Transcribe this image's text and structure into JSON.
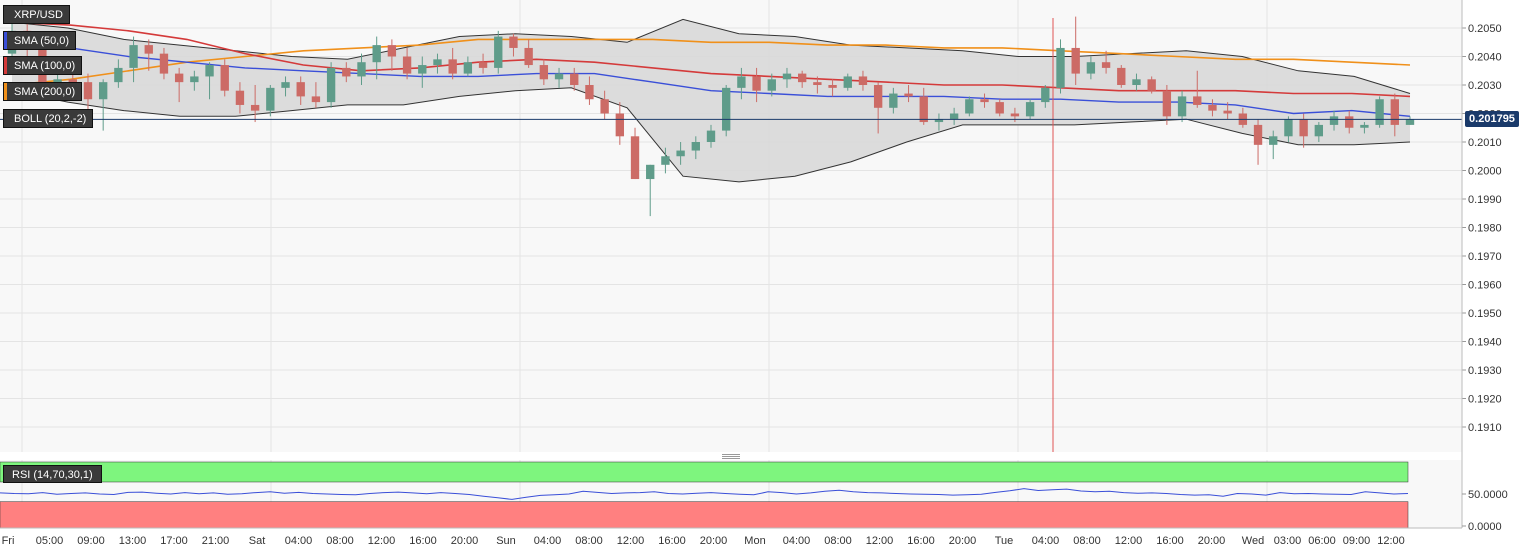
{
  "chart_data": [
    {
      "type": "candlestick",
      "symbol": "XRP/USD",
      "indicators": [
        "SMA (50,0)",
        "SMA (100,0)",
        "SMA (200,0)",
        "BOLL (20,2,-2)"
      ],
      "indicator_colors": {
        "sma50": "#3a4fd8",
        "sma100": "#d43a3a",
        "sma200": "#f0901a",
        "boll": "#3a3a3a"
      },
      "ylim": [
        0.19,
        0.206
      ],
      "yticks": [
        "0.2050",
        "0.2040",
        "0.2030",
        "0.2020",
        "0.2010",
        "0.2000",
        "0.1990",
        "0.1980",
        "0.1970",
        "0.1960",
        "0.1950",
        "0.1940",
        "0.1930",
        "0.1920",
        "0.1910"
      ],
      "current_price": "0.201795",
      "current_price_value": 0.201795,
      "up_color": "#5f9c8a",
      "down_color": "#cc6b66",
      "candles_ohlc": [
        [
          0.2041,
          0.2052,
          0.2036,
          0.2049
        ],
        [
          0.2049,
          0.2053,
          0.204,
          0.2044
        ],
        [
          0.2044,
          0.2046,
          0.2025,
          0.203
        ],
        [
          0.203,
          0.2034,
          0.2027,
          0.2032
        ],
        [
          0.2032,
          0.2036,
          0.2027,
          0.2031
        ],
        [
          0.2031,
          0.2034,
          0.2018,
          0.2025
        ],
        [
          0.2025,
          0.2032,
          0.2014,
          0.2031
        ],
        [
          0.2031,
          0.2039,
          0.2029,
          0.2036
        ],
        [
          0.2036,
          0.2047,
          0.2031,
          0.2044
        ],
        [
          0.2044,
          0.2046,
          0.2035,
          0.2041
        ],
        [
          0.2041,
          0.2043,
          0.2032,
          0.2034
        ],
        [
          0.2034,
          0.2036,
          0.2024,
          0.2031
        ],
        [
          0.2031,
          0.2035,
          0.2028,
          0.2033
        ],
        [
          0.2033,
          0.2038,
          0.2025,
          0.2037
        ],
        [
          0.2037,
          0.2039,
          0.2026,
          0.2028
        ],
        [
          0.2028,
          0.2031,
          0.202,
          0.2023
        ],
        [
          0.2023,
          0.203,
          0.2017,
          0.2021
        ],
        [
          0.2021,
          0.203,
          0.2019,
          0.2029
        ],
        [
          0.2029,
          0.2033,
          0.2026,
          0.2031
        ],
        [
          0.2031,
          0.2033,
          0.2023,
          0.2026
        ],
        [
          0.2026,
          0.2031,
          0.2022,
          0.2024
        ],
        [
          0.2024,
          0.2038,
          0.2022,
          0.2036
        ],
        [
          0.2036,
          0.2038,
          0.2031,
          0.2033
        ],
        [
          0.2033,
          0.2041,
          0.203,
          0.2038
        ],
        [
          0.2038,
          0.2047,
          0.2032,
          0.2044
        ],
        [
          0.2044,
          0.2046,
          0.2035,
          0.204
        ],
        [
          0.204,
          0.2043,
          0.2032,
          0.2034
        ],
        [
          0.2034,
          0.204,
          0.2029,
          0.2037
        ],
        [
          0.2037,
          0.2041,
          0.2034,
          0.2039
        ],
        [
          0.2039,
          0.2043,
          0.2032,
          0.2034
        ],
        [
          0.2034,
          0.204,
          0.2033,
          0.2038
        ],
        [
          0.2038,
          0.2041,
          0.2034,
          0.2036
        ],
        [
          0.2036,
          0.2049,
          0.2034,
          0.2047
        ],
        [
          0.2047,
          0.2048,
          0.204,
          0.2043
        ],
        [
          0.2043,
          0.2046,
          0.2036,
          0.2037
        ],
        [
          0.2037,
          0.2039,
          0.203,
          0.2032
        ],
        [
          0.2032,
          0.2036,
          0.2029,
          0.2034
        ],
        [
          0.2034,
          0.2036,
          0.2028,
          0.203
        ],
        [
          0.203,
          0.2033,
          0.2023,
          0.2025
        ],
        [
          0.2025,
          0.2028,
          0.2018,
          0.202
        ],
        [
          0.202,
          0.2024,
          0.2009,
          0.2012
        ],
        [
          0.2012,
          0.2015,
          0.1997,
          0.1997
        ],
        [
          0.1997,
          0.2002,
          0.1984,
          0.2002
        ],
        [
          0.2002,
          0.2008,
          0.1999,
          0.2005
        ],
        [
          0.2005,
          0.201,
          0.2002,
          0.2007
        ],
        [
          0.2007,
          0.2012,
          0.2004,
          0.201
        ],
        [
          0.201,
          0.2016,
          0.2008,
          0.2014
        ],
        [
          0.2014,
          0.203,
          0.2012,
          0.2029
        ],
        [
          0.2029,
          0.2036,
          0.2025,
          0.2033
        ],
        [
          0.2033,
          0.2036,
          0.2024,
          0.2028
        ],
        [
          0.2028,
          0.2034,
          0.2026,
          0.2032
        ],
        [
          0.2032,
          0.2036,
          0.2029,
          0.2034
        ],
        [
          0.2034,
          0.2035,
          0.2029,
          0.2031
        ],
        [
          0.2031,
          0.2033,
          0.2027,
          0.203
        ],
        [
          0.203,
          0.2032,
          0.2026,
          0.2029
        ],
        [
          0.2029,
          0.2034,
          0.2028,
          0.2033
        ],
        [
          0.2033,
          0.2035,
          0.2028,
          0.203
        ],
        [
          0.203,
          0.2031,
          0.2013,
          0.2022
        ],
        [
          0.2022,
          0.2029,
          0.202,
          0.2027
        ],
        [
          0.2027,
          0.203,
          0.2024,
          0.2026
        ],
        [
          0.2026,
          0.2029,
          0.2016,
          0.2017
        ],
        [
          0.2017,
          0.202,
          0.2014,
          0.2018
        ],
        [
          0.2018,
          0.2022,
          0.2016,
          0.202
        ],
        [
          0.202,
          0.2026,
          0.2019,
          0.2025
        ],
        [
          0.2025,
          0.2027,
          0.2022,
          0.2024
        ],
        [
          0.2024,
          0.2025,
          0.2019,
          0.202
        ],
        [
          0.202,
          0.2022,
          0.2017,
          0.2019
        ],
        [
          0.2019,
          0.2025,
          0.2018,
          0.2024
        ],
        [
          0.2024,
          0.203,
          0.2022,
          0.2029
        ],
        [
          0.2029,
          0.2046,
          0.2027,
          0.2043
        ],
        [
          0.2043,
          0.2054,
          0.203,
          0.2034
        ],
        [
          0.2034,
          0.204,
          0.2032,
          0.2038
        ],
        [
          0.2038,
          0.2042,
          0.2034,
          0.2036
        ],
        [
          0.2036,
          0.2037,
          0.2029,
          0.203
        ],
        [
          0.203,
          0.2034,
          0.2028,
          0.2032
        ],
        [
          0.2032,
          0.2033,
          0.2027,
          0.2028
        ],
        [
          0.2028,
          0.203,
          0.2016,
          0.2019
        ],
        [
          0.2019,
          0.2028,
          0.2017,
          0.2026
        ],
        [
          0.2026,
          0.2035,
          0.2022,
          0.2023
        ],
        [
          0.2023,
          0.2025,
          0.2019,
          0.2021
        ],
        [
          0.2021,
          0.2024,
          0.2018,
          0.202
        ],
        [
          0.202,
          0.2022,
          0.2015,
          0.2016
        ],
        [
          0.2016,
          0.2018,
          0.2002,
          0.2009
        ],
        [
          0.2009,
          0.2014,
          0.2004,
          0.2012
        ],
        [
          0.2012,
          0.2019,
          0.201,
          0.2018
        ],
        [
          0.2018,
          0.202,
          0.2008,
          0.2012
        ],
        [
          0.2012,
          0.2017,
          0.201,
          0.2016
        ],
        [
          0.2016,
          0.2021,
          0.2014,
          0.2019
        ],
        [
          0.2019,
          0.2021,
          0.2013,
          0.2015
        ],
        [
          0.2015,
          0.2017,
          0.2013,
          0.2016
        ],
        [
          0.2016,
          0.2026,
          0.2015,
          0.2025
        ],
        [
          0.2025,
          0.2027,
          0.2012,
          0.2016
        ],
        [
          0.2016,
          0.2019,
          0.2016,
          0.2018
        ]
      ],
      "sma50": [
        0.2045,
        0.2043,
        0.204,
        0.2038,
        0.2036,
        0.2035,
        0.2034,
        0.2033,
        0.2033,
        0.2034,
        0.2034,
        0.2031,
        0.2028,
        0.2027,
        0.2026,
        0.2026,
        0.2026,
        0.2025,
        0.2025,
        0.2024,
        0.2024,
        0.2023,
        0.202,
        0.2021,
        0.2019
      ],
      "sma100": [
        0.2052,
        0.2051,
        0.2049,
        0.2046,
        0.2041,
        0.2037,
        0.2035,
        0.2036,
        0.2038,
        0.2039,
        0.2038,
        0.2036,
        0.2034,
        0.2033,
        0.2032,
        0.2031,
        0.203,
        0.203,
        0.2029,
        0.2028,
        0.2028,
        0.2028,
        0.2027,
        0.2027,
        0.2026
      ],
      "sma200": [
        0.203,
        0.2032,
        0.2035,
        0.2038,
        0.204,
        0.2042,
        0.2043,
        0.2044,
        0.2046,
        0.2046,
        0.2046,
        0.2046,
        0.2045,
        0.2045,
        0.2044,
        0.2044,
        0.2043,
        0.2043,
        0.2042,
        0.2041,
        0.204,
        0.2039,
        0.2039,
        0.2038,
        0.2037
      ],
      "boll_upper": [
        0.2052,
        0.205,
        0.2046,
        0.2044,
        0.2042,
        0.204,
        0.2039,
        0.2043,
        0.2047,
        0.2048,
        0.2047,
        0.2045,
        0.2053,
        0.2048,
        0.2047,
        0.2044,
        0.2043,
        0.2042,
        0.204,
        0.204,
        0.2041,
        0.2042,
        0.204,
        0.2035,
        0.2033,
        0.2027
      ],
      "boll_lower": [
        0.2028,
        0.2024,
        0.2021,
        0.2019,
        0.2019,
        0.2021,
        0.2023,
        0.2023,
        0.2026,
        0.2028,
        0.2029,
        0.2022,
        0.1998,
        0.1996,
        0.1998,
        0.2003,
        0.201,
        0.2016,
        0.2016,
        0.2016,
        0.2017,
        0.2018,
        0.2013,
        0.2009,
        0.2009,
        0.201
      ],
      "x_tick_labels": [
        "Fri",
        "05:00",
        "09:00",
        "13:00",
        "17:00",
        "21:00",
        "Sat",
        "04:00",
        "08:00",
        "12:00",
        "16:00",
        "20:00",
        "Sun",
        "04:00",
        "08:00",
        "12:00",
        "16:00",
        "20:00",
        "Mon",
        "04:00",
        "08:00",
        "12:00",
        "16:00",
        "20:00",
        "Tue",
        "04:00",
        "08:00",
        "12:00",
        "16:00",
        "20:00",
        "Wed",
        "03:00",
        "06:00",
        "09:00",
        "12:00"
      ]
    },
    {
      "type": "line",
      "indicator": "RSI (14,70,30,1)",
      "ylim": [
        0,
        100
      ],
      "yticks": [
        "50.0000",
        "0.0000"
      ],
      "overbought": 70,
      "oversold": 30,
      "band_colors": {
        "upper": "#7ef57e",
        "lower": "#ff8080"
      },
      "line_color": "#3a4fd8",
      "values": [
        54,
        52,
        51,
        55,
        49,
        52,
        54,
        50,
        48,
        56,
        57,
        53,
        50,
        55,
        51,
        54,
        49,
        51,
        55,
        58,
        53,
        56,
        52,
        50,
        48,
        47,
        52,
        55,
        57,
        54,
        51,
        55,
        52,
        48,
        42,
        36,
        30,
        38,
        45,
        47,
        50,
        60,
        56,
        52,
        54,
        55,
        58,
        52,
        50,
        53,
        55,
        52,
        49,
        47,
        58,
        55,
        50,
        54,
        60,
        64,
        58,
        55,
        54,
        52,
        50,
        49,
        48,
        46,
        47,
        49,
        56,
        62,
        70,
        63,
        66,
        68,
        61,
        58,
        60,
        55,
        53,
        54,
        52,
        48,
        46,
        47,
        42,
        52,
        50,
        46,
        55,
        51,
        52,
        50,
        49,
        48,
        58,
        54,
        50,
        52
      ]
    }
  ]
}
